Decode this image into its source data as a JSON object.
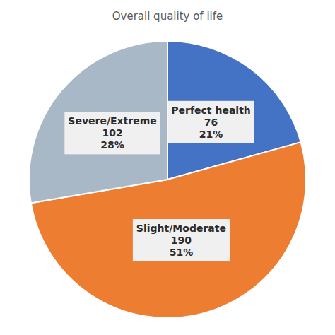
{
  "chart_data": {
    "type": "pie",
    "title": "Overall quality of life",
    "categories": [
      "Perfect health",
      "Slight/Moderate",
      "Severe/Extreme"
    ],
    "values": [
      76,
      190,
      102
    ],
    "percents": [
      {
        "value": 21,
        "label": "21%"
      },
      {
        "value": 51,
        "label": "51%"
      },
      {
        "value": 28,
        "label": "28%"
      }
    ],
    "colors": [
      "#4472C4",
      "#ED7D31",
      "#A9B8C6"
    ],
    "data_labels": true
  }
}
